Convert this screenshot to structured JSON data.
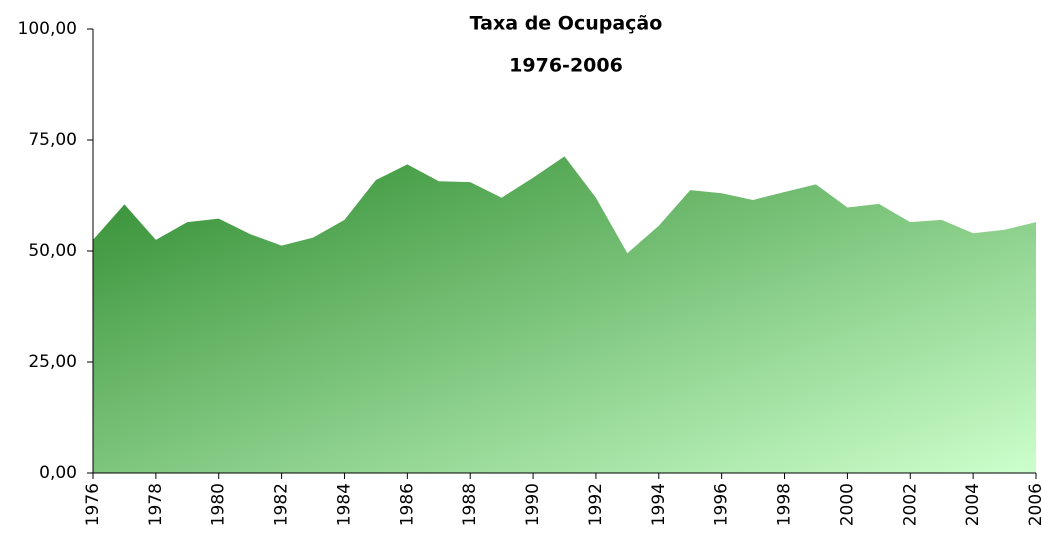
{
  "chart_data": {
    "type": "area",
    "title": "Taxa de Ocupação",
    "subtitle": "1976-2006",
    "x": [
      1976,
      1977,
      1978,
      1979,
      1980,
      1981,
      1982,
      1983,
      1984,
      1985,
      1986,
      1987,
      1988,
      1989,
      1990,
      1991,
      1992,
      1993,
      1994,
      1995,
      1996,
      1997,
      1998,
      1999,
      2000,
      2001,
      2002,
      2003,
      2004,
      2005,
      2006
    ],
    "values": [
      52.5,
      60.5,
      52.5,
      56.5,
      57.3,
      53.8,
      51.2,
      53.0,
      57.0,
      66.0,
      69.5,
      65.7,
      65.5,
      62.0,
      66.5,
      71.3,
      62.0,
      49.5,
      55.7,
      63.7,
      63.0,
      61.5,
      63.3,
      65.0,
      59.8,
      60.6,
      56.5,
      57.0,
      54.0,
      54.8,
      56.5
    ],
    "gradient": [
      "#2e8b2e",
      "#ccffcc"
    ],
    "xlim": [
      1976,
      2006
    ],
    "xticks": [
      1976,
      1978,
      1980,
      1982,
      1984,
      1986,
      1988,
      1990,
      1992,
      1994,
      1996,
      1998,
      2000,
      2002,
      2004,
      2006
    ],
    "ylim": [
      0,
      100
    ],
    "yticks": [
      {
        "value": 0,
        "label": "0,00"
      },
      {
        "value": 25,
        "label": "25,00"
      },
      {
        "value": 50,
        "label": "50,00"
      },
      {
        "value": 75,
        "label": "75,00"
      },
      {
        "value": 100,
        "label": "100,00"
      }
    ]
  }
}
